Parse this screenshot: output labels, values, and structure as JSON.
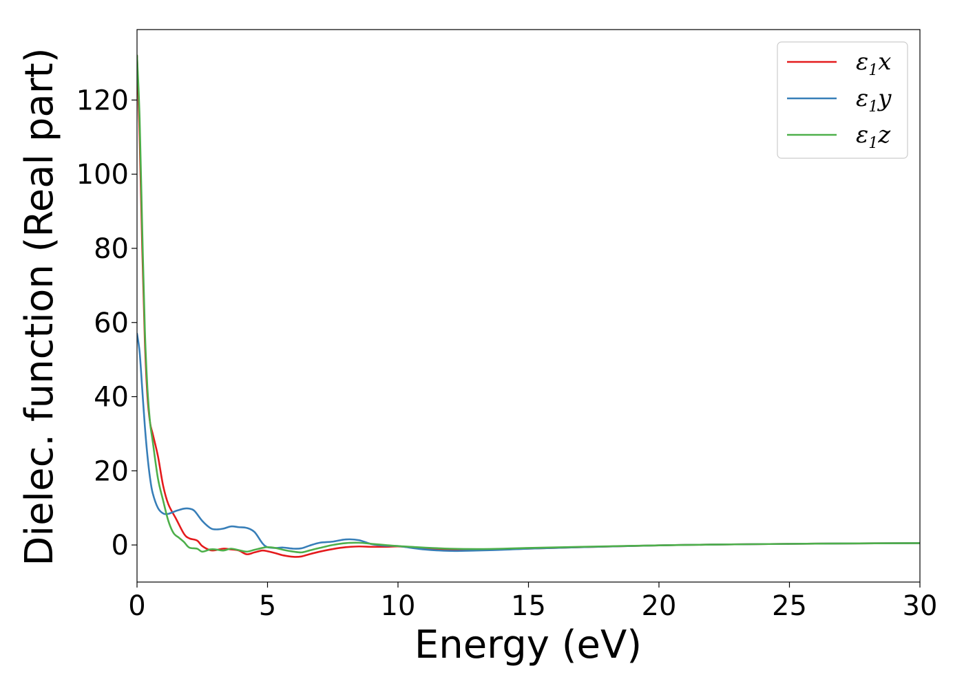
{
  "chart_data": {
    "type": "line",
    "xlabel": "Energy (eV)",
    "ylabel": "Dielec. function (Real part)",
    "xlim": [
      0,
      30
    ],
    "ylim": [
      -10,
      139
    ],
    "xticks": [
      0,
      5,
      10,
      15,
      20,
      25,
      30
    ],
    "yticks": [
      0,
      20,
      40,
      60,
      80,
      100,
      120
    ],
    "grid": false,
    "legend_position": "top-right",
    "series": [
      {
        "name": "ε1x",
        "label_main": "ε",
        "label_sub": "1",
        "label_tail": "x",
        "color": "#e41a1c",
        "x": [
          0,
          0.1,
          0.2,
          0.3,
          0.4,
          0.5,
          0.6,
          0.8,
          1.0,
          1.2,
          1.5,
          1.8,
          2.0,
          2.3,
          2.5,
          2.8,
          3.0,
          3.3,
          3.6,
          3.9,
          4.2,
          4.5,
          4.8,
          5.0,
          5.3,
          5.6,
          6.0,
          6.3,
          6.6,
          7.0,
          7.5,
          8.0,
          8.5,
          9.0,
          9.5,
          10.0,
          10.5,
          11.0,
          12.0,
          13.0,
          14.0,
          15.0,
          17.0,
          20.0,
          22.0,
          25.0,
          27.0,
          30.0
        ],
        "y": [
          132,
          110,
          80,
          55,
          40,
          33,
          30,
          24,
          16,
          11,
          7,
          3,
          1.8,
          1.2,
          -0.3,
          -1.4,
          -1.4,
          -1.0,
          -1.2,
          -1.5,
          -2.5,
          -2.0,
          -1.5,
          -1.7,
          -2.2,
          -2.8,
          -3.2,
          -3.1,
          -2.5,
          -1.8,
          -1.1,
          -0.6,
          -0.4,
          -0.5,
          -0.5,
          -0.4,
          -0.6,
          -0.8,
          -1.3,
          -1.3,
          -1.2,
          -1.0,
          -0.6,
          -0.1,
          0.1,
          0.3,
          0.4,
          0.5
        ]
      },
      {
        "name": "ε1y",
        "label_main": "ε",
        "label_sub": "1",
        "label_tail": "y",
        "color": "#377eb8",
        "x": [
          0,
          0.1,
          0.2,
          0.3,
          0.4,
          0.5,
          0.6,
          0.8,
          1.0,
          1.2,
          1.5,
          1.8,
          2.0,
          2.2,
          2.5,
          2.8,
          3.0,
          3.3,
          3.6,
          3.9,
          4.2,
          4.5,
          4.8,
          5.0,
          5.3,
          5.6,
          6.0,
          6.3,
          6.6,
          7.0,
          7.5,
          8.0,
          8.5,
          9.0,
          9.5,
          10.0,
          11.0,
          12.0,
          13.0,
          14.0,
          15.0,
          17.0,
          20.0,
          22.0,
          25.0,
          27.0,
          30.0
        ],
        "y": [
          57,
          52,
          42,
          32,
          24,
          18,
          14,
          10,
          8.5,
          8.4,
          9.2,
          9.8,
          9.8,
          9.2,
          6.5,
          4.6,
          4.2,
          4.4,
          5.0,
          4.8,
          4.6,
          3.5,
          0.5,
          -0.6,
          -0.8,
          -0.7,
          -1.0,
          -0.9,
          -0.2,
          0.6,
          0.9,
          1.5,
          1.3,
          0.2,
          -0.2,
          -0.3,
          -1.2,
          -1.6,
          -1.5,
          -1.3,
          -1.0,
          -0.6,
          -0.1,
          0.1,
          0.3,
          0.4,
          0.5
        ]
      },
      {
        "name": "ε1z",
        "label_main": "ε",
        "label_sub": "1",
        "label_tail": "z",
        "color": "#4daf4a",
        "x": [
          0,
          0.1,
          0.2,
          0.3,
          0.4,
          0.5,
          0.6,
          0.8,
          1.0,
          1.2,
          1.4,
          1.6,
          1.8,
          2.0,
          2.3,
          2.5,
          2.8,
          3.0,
          3.3,
          3.6,
          3.9,
          4.2,
          4.5,
          4.8,
          5.0,
          5.3,
          5.6,
          6.0,
          6.3,
          6.6,
          7.0,
          7.5,
          8.0,
          8.5,
          9.0,
          9.5,
          10.0,
          10.5,
          11.0,
          12.0,
          13.0,
          14.0,
          15.0,
          17.0,
          20.0,
          22.0,
          25.0,
          27.0,
          30.0
        ],
        "y": [
          132,
          115,
          85,
          58,
          42,
          33,
          28,
          18,
          12,
          6.5,
          3.2,
          2.0,
          0.8,
          -0.7,
          -1.0,
          -1.8,
          -1.2,
          -1.2,
          -1.5,
          -1.0,
          -1.4,
          -1.8,
          -1.3,
          -0.8,
          -0.6,
          -0.8,
          -1.3,
          -1.8,
          -2.0,
          -1.5,
          -0.8,
          0.0,
          0.5,
          0.6,
          0.3,
          0.0,
          -0.3,
          -0.5,
          -0.7,
          -1.0,
          -1.1,
          -1.0,
          -0.8,
          -0.5,
          -0.1,
          0.1,
          0.3,
          0.4,
          0.5
        ]
      }
    ]
  }
}
